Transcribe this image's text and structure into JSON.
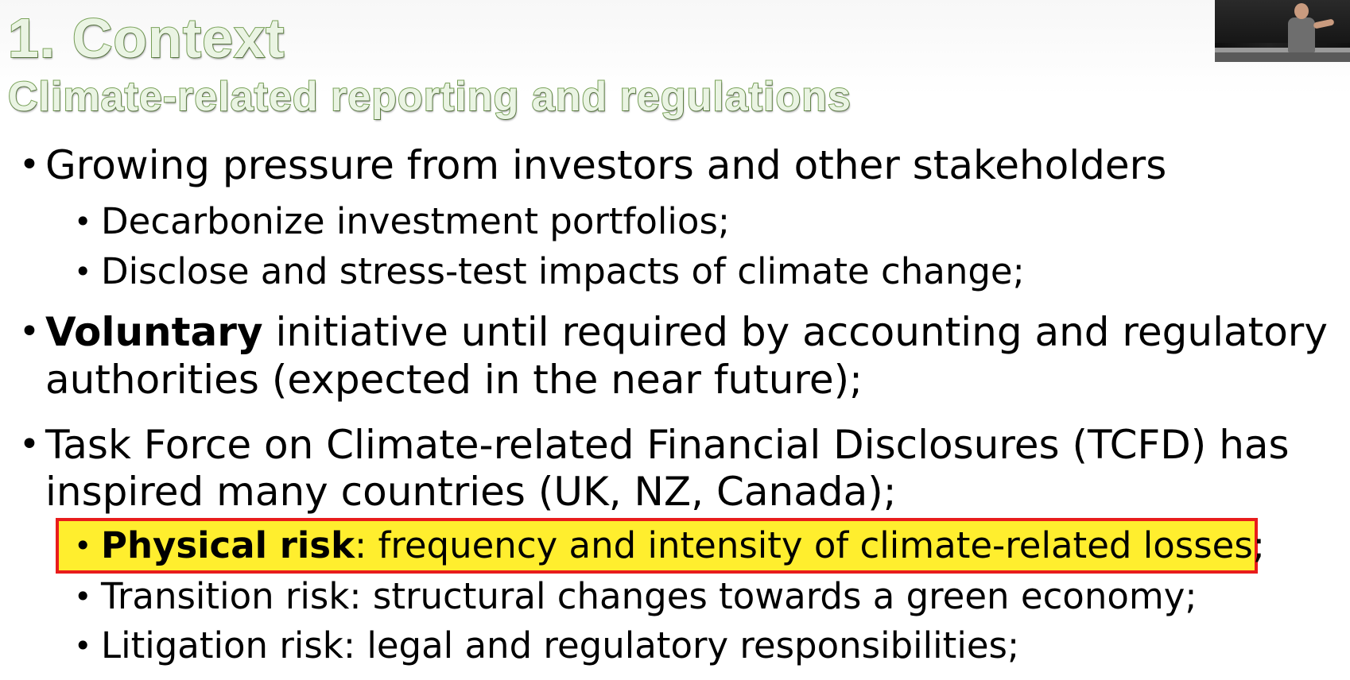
{
  "slide": {
    "title": "1. Context",
    "subtitle": "Climate-related reporting and regulations",
    "bullet_symbol": "•",
    "bullets": [
      {
        "text": "Growing pressure from investors and other stakeholders"
      },
      {
        "text": "Decarbonize investment portfolios;"
      },
      {
        "text": "Disclose and stress-test impacts of climate change;"
      },
      {
        "bold": "Voluntary",
        "text_line1": " initiative until required by accounting and regulatory",
        "text_line2": "authorities (expected in the near future);"
      },
      {
        "text_line1": "Task Force on Climate-related Financial Disclosures (TCFD) has",
        "text_line2": "inspired many countries (UK, NZ, Canada);"
      },
      {
        "bold": "Physical risk",
        "text": ": frequency and intensity of climate-related losses;"
      },
      {
        "text": "Transition risk: structural changes towards a green economy;"
      },
      {
        "text": "Litigation risk: legal and regulatory responsibilities;"
      }
    ]
  },
  "colors": {
    "heading_fill": "#eaf4e3",
    "heading_outline": "#7aa35a",
    "highlight_fill": "#ffee2e",
    "highlight_border": "#e81c1c"
  },
  "webcam": {
    "icon": "webcam-presenter-icon"
  }
}
